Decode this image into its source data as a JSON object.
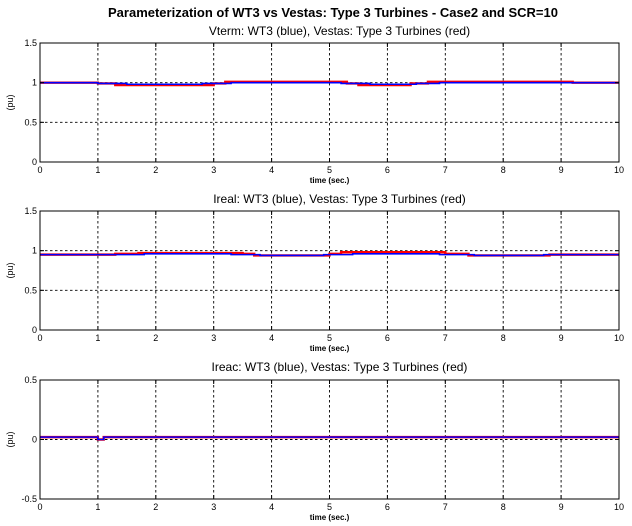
{
  "figure_title": "Parameterization of WT3 vs Vestas: Type 3 Turbines - Case2 and SCR=10",
  "colors": {
    "wt3": "#0000ff",
    "vestas": "#ff0000",
    "grid": "#000000",
    "background": "#ffffff"
  },
  "chart_data": [
    {
      "type": "line",
      "title": "Vterm: WT3 (blue), Vestas: Type 3 Turbines (red)",
      "xlabel": "time (sec.)",
      "ylabel": "(pu)",
      "xlim": [
        0,
        10
      ],
      "ylim": [
        0,
        1.5
      ],
      "xticks": [
        "0",
        "1",
        "2",
        "3",
        "4",
        "5",
        "6",
        "7",
        "8",
        "9",
        "10"
      ],
      "yticks": [
        "0",
        "0.5",
        "1",
        "1.5"
      ],
      "grid": true,
      "series": [
        {
          "color": "#ff0000",
          "x": [
            0,
            1.0,
            1.0,
            1.3,
            1.3,
            3.0,
            3.0,
            3.2,
            3.2,
            5.3,
            5.3,
            5.5,
            5.5,
            6.4,
            6.4,
            6.7,
            6.7,
            9.2,
            9.2,
            10
          ],
          "y": [
            1.0,
            1.0,
            0.99,
            0.99,
            0.97,
            0.97,
            0.99,
            0.99,
            1.01,
            1.01,
            0.99,
            0.99,
            0.97,
            0.97,
            0.99,
            0.99,
            1.01,
            1.01,
            1.0,
            1.0
          ]
        },
        {
          "color": "#0000ff",
          "x": [
            0,
            1.0,
            1.0,
            1.5,
            1.5,
            2.8,
            2.8,
            3.3,
            3.3,
            5.2,
            5.2,
            5.7,
            5.7,
            6.5,
            6.5,
            6.9,
            6.9,
            9.0,
            9.0,
            10
          ],
          "y": [
            1.0,
            1.0,
            0.99,
            0.99,
            0.98,
            0.98,
            0.99,
            0.99,
            1.0,
            1.0,
            0.99,
            0.99,
            0.98,
            0.98,
            0.99,
            0.99,
            1.0,
            1.0,
            1.0,
            1.0
          ]
        }
      ]
    },
    {
      "type": "line",
      "title": "Ireal: WT3 (blue), Vestas: Type 3 Turbines (red)",
      "xlabel": "time (sec.)",
      "ylabel": "(pu)",
      "xlim": [
        0,
        10
      ],
      "ylim": [
        0,
        1.5
      ],
      "xticks": [
        "0",
        "1",
        "2",
        "3",
        "4",
        "5",
        "6",
        "7",
        "8",
        "9",
        "10"
      ],
      "yticks": [
        "0",
        "0.5",
        "1",
        "1.5"
      ],
      "grid": true,
      "series": [
        {
          "color": "#ff0000",
          "x": [
            0,
            1.3,
            1.3,
            1.7,
            1.7,
            3.5,
            3.5,
            3.7,
            3.7,
            5.0,
            5.0,
            5.2,
            5.2,
            7.0,
            7.0,
            7.4,
            7.4,
            8.8,
            8.8,
            10
          ],
          "y": [
            0.95,
            0.95,
            0.96,
            0.96,
            0.97,
            0.97,
            0.96,
            0.96,
            0.94,
            0.94,
            0.96,
            0.96,
            0.98,
            0.98,
            0.96,
            0.96,
            0.94,
            0.94,
            0.95,
            0.95
          ]
        },
        {
          "color": "#0000ff",
          "x": [
            0,
            1.2,
            1.2,
            1.8,
            1.8,
            3.3,
            3.3,
            3.8,
            3.8,
            4.9,
            4.9,
            5.4,
            5.4,
            6.9,
            6.9,
            7.5,
            7.5,
            8.7,
            8.7,
            10
          ],
          "y": [
            0.95,
            0.95,
            0.95,
            0.95,
            0.96,
            0.96,
            0.95,
            0.95,
            0.94,
            0.94,
            0.95,
            0.95,
            0.96,
            0.96,
            0.95,
            0.95,
            0.94,
            0.94,
            0.95,
            0.95
          ]
        }
      ]
    },
    {
      "type": "line",
      "title": "Ireac: WT3 (blue), Vestas: Type 3 Turbines (red)",
      "xlabel": "time (sec.)",
      "ylabel": "(pu)",
      "xlim": [
        0,
        10
      ],
      "ylim": [
        -0.5,
        0.5
      ],
      "xticks": [
        "0",
        "1",
        "2",
        "3",
        "4",
        "5",
        "6",
        "7",
        "8",
        "9",
        "10"
      ],
      "yticks": [
        "-0.5",
        "0",
        "0.5"
      ],
      "grid": true,
      "series": [
        {
          "color": "#ff0000",
          "x": [
            0,
            1.0,
            1.0,
            1.1,
            1.1,
            10
          ],
          "y": [
            0.02,
            0.02,
            0.0,
            0.0,
            0.02,
            0.02
          ]
        },
        {
          "color": "#0000ff",
          "x": [
            0,
            1.0,
            1.0,
            1.1,
            1.1,
            10
          ],
          "y": [
            0.02,
            0.02,
            0.0,
            0.0,
            0.02,
            0.02
          ]
        }
      ]
    }
  ]
}
